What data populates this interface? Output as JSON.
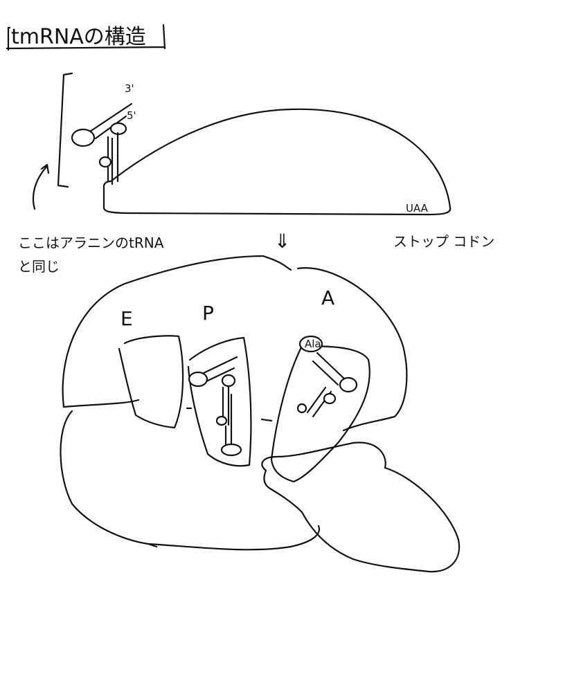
{
  "title": "tmRNAの構造",
  "labels": {
    "three_prime": "3'",
    "five_prime": "5'",
    "stop_codon_seq": "UAA",
    "stop_codon": "ストップ コドン",
    "alanine_note_line1": "ここはアラニンのtRNA",
    "alanine_note_line2": "と同じ",
    "arrow_down": "⇓",
    "site_e": "E",
    "site_p": "P",
    "site_a": "A",
    "ala": "Ala"
  }
}
